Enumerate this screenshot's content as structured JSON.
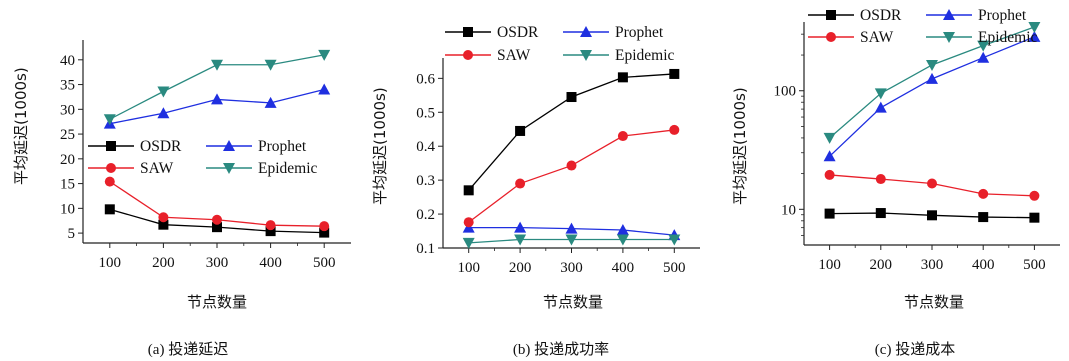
{
  "chart_data": [
    {
      "type": "line",
      "caption": "(a) 投递延迟",
      "xlabel": "节点数量",
      "ylabel": "平均延迟(1000s)",
      "x": [
        100,
        200,
        300,
        400,
        500
      ],
      "xlim": [
        50,
        550
      ],
      "ylim": [
        3,
        44
      ],
      "yticks": [
        5,
        10,
        15,
        20,
        25,
        30,
        35,
        40
      ],
      "ytick_labels": [
        "5",
        "10",
        "15",
        "20",
        "25",
        "30",
        "35",
        "40"
      ],
      "xticks": [
        100,
        200,
        300,
        400,
        500
      ],
      "xtick_labels": [
        "100",
        "200",
        "300",
        "400",
        "500"
      ],
      "yscale": "linear",
      "legend_position": "lower-right",
      "series": [
        {
          "name": "OSDR",
          "color": "#000000",
          "marker": "square",
          "values": [
            9.8,
            6.7,
            6.2,
            5.4,
            5.1
          ]
        },
        {
          "name": "Prophet",
          "color": "#1f2fe0",
          "marker": "triangle-up",
          "values": [
            27.1,
            29.2,
            32.0,
            31.3,
            34.0
          ]
        },
        {
          "name": "SAW",
          "color": "#e8202a",
          "marker": "circle",
          "values": [
            15.4,
            8.2,
            7.7,
            6.6,
            6.4
          ]
        },
        {
          "name": "Epidemic",
          "color": "#2a8a80",
          "marker": "triangle-down",
          "values": [
            28.0,
            33.6,
            39.0,
            39.0,
            41.0
          ]
        }
      ]
    },
    {
      "type": "line",
      "caption": "(b) 投递成功率",
      "xlabel": "节点数量",
      "ylabel": "平均延迟(1000s)",
      "x": [
        100,
        200,
        300,
        400,
        500
      ],
      "xlim": [
        50,
        550
      ],
      "ylim": [
        0.1,
        0.66
      ],
      "yticks": [
        0.1,
        0.2,
        0.3,
        0.4,
        0.5,
        0.6
      ],
      "ytick_labels": [
        "0.1",
        "0.2",
        "0.3",
        "0.4",
        "0.5",
        "0.6"
      ],
      "xticks": [
        100,
        200,
        300,
        400,
        500
      ],
      "xtick_labels": [
        "100",
        "200",
        "300",
        "400",
        "500"
      ],
      "yscale": "linear",
      "legend_position": "top",
      "series": [
        {
          "name": "OSDR",
          "color": "#000000",
          "marker": "square",
          "values": [
            0.27,
            0.445,
            0.545,
            0.603,
            0.613
          ]
        },
        {
          "name": "Prophet",
          "color": "#1f2fe0",
          "marker": "triangle-up",
          "values": [
            0.16,
            0.16,
            0.157,
            0.153,
            0.138
          ]
        },
        {
          "name": "SAW",
          "color": "#e8202a",
          "marker": "circle",
          "values": [
            0.176,
            0.29,
            0.343,
            0.43,
            0.448
          ]
        },
        {
          "name": "Epidemic",
          "color": "#2a8a80",
          "marker": "triangle-down",
          "values": [
            0.115,
            0.125,
            0.125,
            0.125,
            0.125
          ]
        }
      ]
    },
    {
      "type": "line",
      "caption": "(c) 投递成本",
      "xlabel": "节点数量",
      "ylabel": "平均延迟(1000s)",
      "x": [
        100,
        200,
        300,
        400,
        500
      ],
      "xlim": [
        50,
        550
      ],
      "ylim": [
        5,
        380
      ],
      "yticks": [
        10,
        100
      ],
      "ytick_labels": [
        "10",
        "100"
      ],
      "xticks": [
        100,
        200,
        300,
        400,
        500
      ],
      "xtick_labels": [
        "100",
        "200",
        "300",
        "400",
        "500"
      ],
      "yscale": "log",
      "legend_position": "top",
      "series": [
        {
          "name": "OSDR",
          "color": "#000000",
          "marker": "square",
          "values": [
            9.2,
            9.3,
            8.9,
            8.6,
            8.5
          ]
        },
        {
          "name": "Prophet",
          "color": "#1f2fe0",
          "marker": "triangle-up",
          "values": [
            28,
            72,
            126,
            190,
            285
          ]
        },
        {
          "name": "SAW",
          "color": "#e8202a",
          "marker": "circle",
          "values": [
            19.5,
            18.0,
            16.5,
            13.5,
            13.0
          ]
        },
        {
          "name": "Epidemic",
          "color": "#2a8a80",
          "marker": "triangle-down",
          "values": [
            40,
            95,
            165,
            240,
            345
          ]
        }
      ]
    }
  ]
}
